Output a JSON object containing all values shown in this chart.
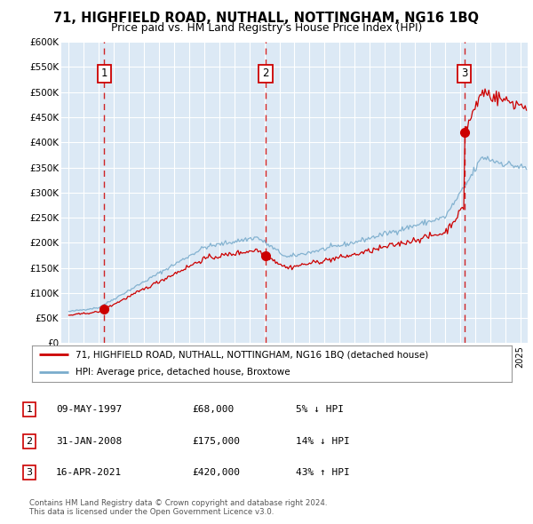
{
  "title": "71, HIGHFIELD ROAD, NUTHALL, NOTTINGHAM, NG16 1BQ",
  "subtitle": "Price paid vs. HM Land Registry's House Price Index (HPI)",
  "background_color": "#dce9f5",
  "sale_color": "#cc0000",
  "hpi_color": "#7aaccc",
  "transactions": [
    {
      "date_num": 1997.36,
      "price": 68000,
      "label": "1"
    },
    {
      "date_num": 2008.08,
      "price": 175000,
      "label": "2"
    },
    {
      "date_num": 2021.29,
      "price": 420000,
      "label": "3"
    }
  ],
  "legend_entries": [
    "71, HIGHFIELD ROAD, NUTHALL, NOTTINGHAM, NG16 1BQ (detached house)",
    "HPI: Average price, detached house, Broxtowe"
  ],
  "table_rows": [
    {
      "num": "1",
      "date": "09-MAY-1997",
      "price": "£68,000",
      "hpi": "5% ↓ HPI"
    },
    {
      "num": "2",
      "date": "31-JAN-2008",
      "price": "£175,000",
      "hpi": "14% ↓ HPI"
    },
    {
      "num": "3",
      "date": "16-APR-2021",
      "price": "£420,000",
      "hpi": "43% ↑ HPI"
    }
  ],
  "footer": "Contains HM Land Registry data © Crown copyright and database right 2024.\nThis data is licensed under the Open Government Licence v3.0.",
  "ylim": [
    0,
    600000
  ],
  "yticks": [
    0,
    50000,
    100000,
    150000,
    200000,
    250000,
    300000,
    350000,
    400000,
    450000,
    500000,
    550000,
    600000
  ],
  "xlim_start": 1994.5,
  "xlim_end": 2025.5
}
